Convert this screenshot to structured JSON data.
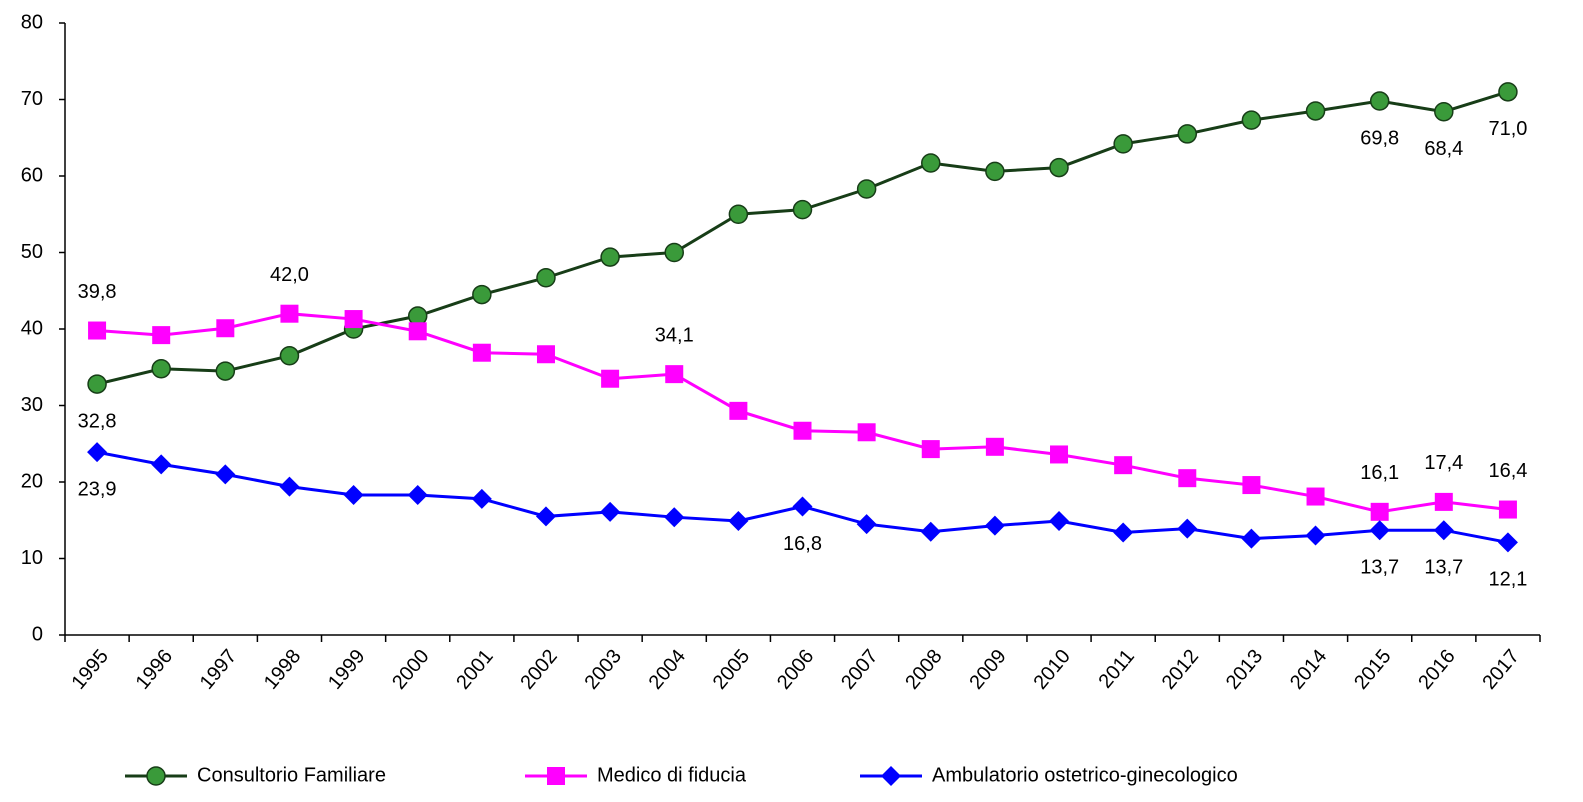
{
  "chart_data": {
    "type": "line",
    "categories": [
      "1995",
      "1996",
      "1997",
      "1998",
      "1999",
      "2000",
      "2001",
      "2002",
      "2003",
      "2004",
      "2005",
      "2006",
      "2007",
      "2008",
      "2009",
      "2010",
      "2011",
      "2012",
      "2013",
      "2014",
      "2015",
      "2016",
      "2017"
    ],
    "series": [
      {
        "name": "Consultorio Familiare",
        "color": "#173d17",
        "marker_fill": "#3a9a3a",
        "marker": "circle",
        "label_position": "below",
        "values": [
          32.8,
          34.8,
          34.5,
          36.5,
          40.0,
          41.7,
          44.5,
          46.7,
          49.4,
          50.0,
          55.0,
          55.6,
          58.3,
          61.7,
          60.6,
          61.1,
          64.2,
          65.5,
          67.3,
          68.5,
          69.8,
          68.4,
          71.0
        ],
        "value_labels": [
          "32,8",
          null,
          null,
          null,
          null,
          null,
          null,
          null,
          null,
          null,
          null,
          null,
          null,
          null,
          null,
          null,
          null,
          null,
          null,
          null,
          "69,8",
          "68,4",
          "71,0"
        ]
      },
      {
        "name": "Medico di fiducia",
        "color": "#ff00ff",
        "marker_fill": "#ff00ff",
        "marker": "square",
        "label_position": "above",
        "values": [
          39.8,
          39.2,
          40.1,
          42.0,
          41.3,
          39.7,
          36.9,
          36.7,
          33.5,
          34.1,
          29.3,
          26.7,
          26.5,
          24.3,
          24.6,
          23.6,
          22.2,
          20.5,
          19.6,
          18.1,
          16.1,
          17.4,
          16.4
        ],
        "value_labels": [
          "39,8",
          null,
          null,
          "42,0",
          null,
          null,
          null,
          null,
          null,
          "34,1",
          null,
          null,
          null,
          null,
          null,
          null,
          null,
          null,
          null,
          null,
          "16,1",
          "17,4",
          "16,4"
        ]
      },
      {
        "name": "Ambulatorio ostetrico-ginecologico",
        "color": "#0000ff",
        "marker_fill": "#0000ff",
        "marker": "diamond",
        "label_position": "below",
        "values": [
          23.9,
          22.3,
          21.0,
          19.4,
          18.3,
          18.3,
          17.8,
          15.5,
          16.1,
          15.4,
          14.9,
          16.8,
          14.5,
          13.5,
          14.3,
          14.9,
          13.4,
          13.9,
          12.6,
          13.0,
          13.7,
          13.7,
          12.1
        ],
        "value_labels": [
          "23,9",
          null,
          null,
          null,
          null,
          null,
          null,
          null,
          null,
          null,
          null,
          "16,8",
          null,
          null,
          null,
          null,
          null,
          null,
          null,
          null,
          "13,7",
          "13,7",
          "12,1"
        ]
      }
    ],
    "ylim": [
      0,
      80
    ],
    "yticks": [
      0,
      10,
      20,
      30,
      40,
      50,
      60,
      70,
      80
    ],
    "grid": false,
    "legend": "bottom"
  }
}
